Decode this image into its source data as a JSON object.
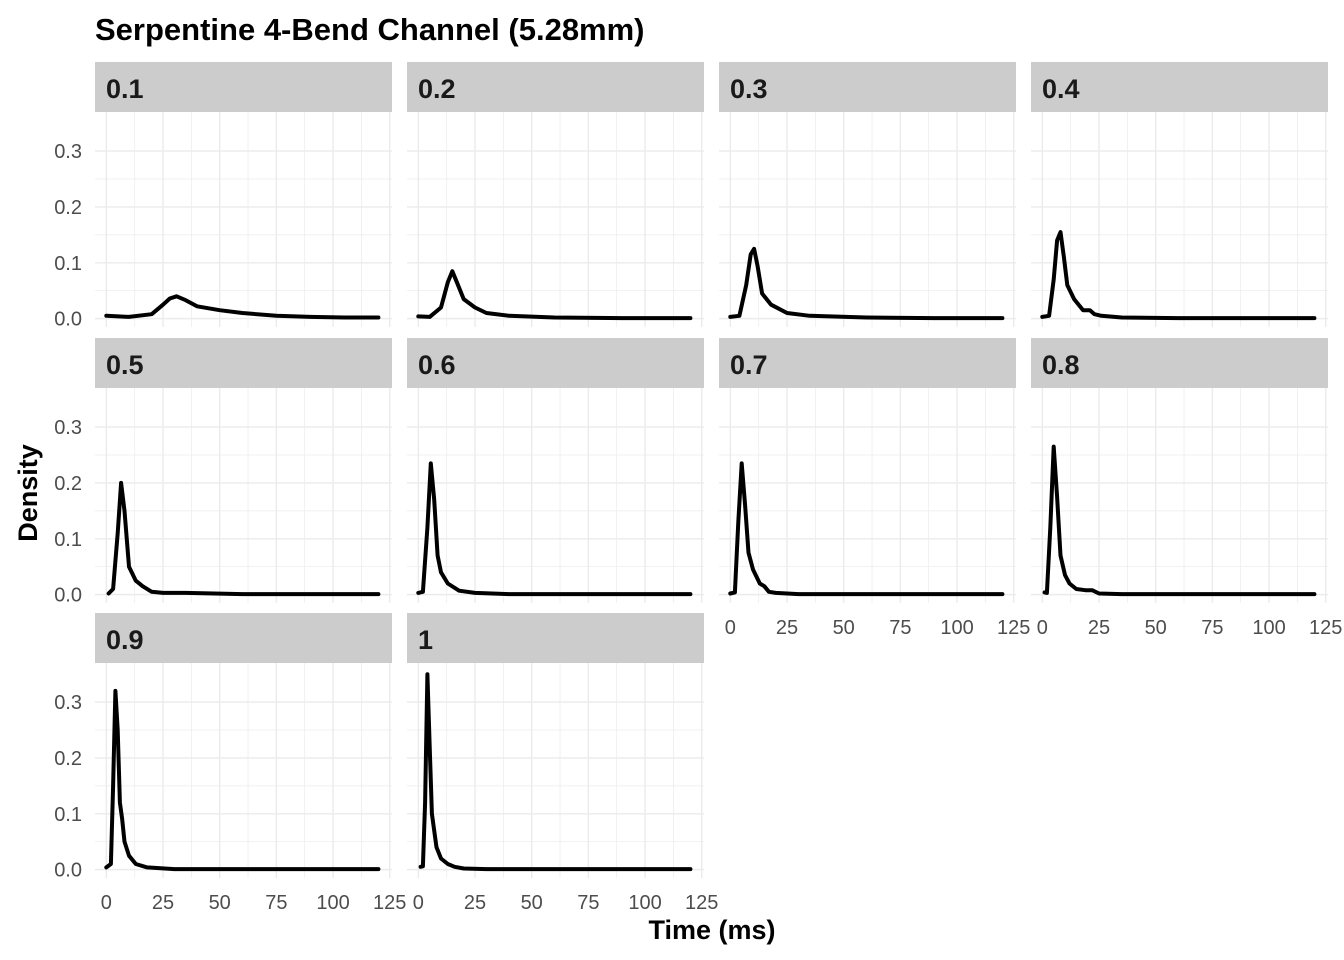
{
  "chart_data": {
    "type": "line",
    "title": "Serpentine 4-Bend Channel (5.28mm)",
    "xlabel": "Time (ms)",
    "ylabel": "Density",
    "xlim": [
      -5,
      126
    ],
    "ylim": [
      -0.015,
      0.37
    ],
    "x_ticks": [
      0,
      25,
      50,
      75,
      100,
      125
    ],
    "y_ticks": [
      0.0,
      0.1,
      0.2,
      0.3
    ],
    "x_tick_labels": [
      "0",
      "25",
      "50",
      "75",
      "100",
      "125"
    ],
    "y_tick_labels": [
      "0.0",
      "0.1",
      "0.2",
      "0.3"
    ],
    "grid": true,
    "facet_layout": {
      "ncol": 4,
      "nrow": 3
    },
    "panels": [
      {
        "label": "0.1",
        "x": [
          0,
          10,
          20,
          25,
          28,
          31,
          35,
          40,
          50,
          60,
          75,
          90,
          105,
          120
        ],
        "y": [
          0.005,
          0.003,
          0.008,
          0.025,
          0.036,
          0.04,
          0.033,
          0.022,
          0.015,
          0.01,
          0.005,
          0.003,
          0.002,
          0.002
        ]
      },
      {
        "label": "0.2",
        "x": [
          0,
          5,
          10,
          13,
          15,
          17,
          20,
          25,
          30,
          40,
          60,
          90,
          120
        ],
        "y": [
          0.004,
          0.003,
          0.02,
          0.065,
          0.085,
          0.065,
          0.035,
          0.02,
          0.01,
          0.005,
          0.002,
          0.001,
          0.001
        ]
      },
      {
        "label": "0.3",
        "x": [
          0,
          4,
          7,
          9,
          10.5,
          12,
          14,
          18,
          25,
          35,
          60,
          90,
          120
        ],
        "y": [
          0.003,
          0.005,
          0.06,
          0.115,
          0.125,
          0.095,
          0.045,
          0.025,
          0.01,
          0.005,
          0.002,
          0.001,
          0.001
        ]
      },
      {
        "label": "0.4",
        "x": [
          0,
          3,
          5,
          6.5,
          8,
          9.5,
          11,
          14,
          18,
          21,
          23,
          26,
          35,
          60,
          120
        ],
        "y": [
          0.003,
          0.005,
          0.07,
          0.14,
          0.155,
          0.11,
          0.06,
          0.035,
          0.015,
          0.015,
          0.008,
          0.005,
          0.002,
          0.001,
          0.001
        ]
      },
      {
        "label": "0.5",
        "x": [
          1,
          3,
          5,
          6.5,
          8,
          10,
          13,
          16,
          20,
          25,
          35,
          60,
          120
        ],
        "y": [
          0.002,
          0.01,
          0.11,
          0.2,
          0.15,
          0.05,
          0.025,
          0.015,
          0.005,
          0.003,
          0.003,
          0.001,
          0.001
        ]
      },
      {
        "label": "0.6",
        "x": [
          0,
          2,
          4,
          5.5,
          7,
          8.5,
          10,
          13,
          18,
          25,
          40,
          60,
          120
        ],
        "y": [
          0.003,
          0.005,
          0.12,
          0.235,
          0.17,
          0.07,
          0.04,
          0.02,
          0.007,
          0.003,
          0.001,
          0.001,
          0.001
        ]
      },
      {
        "label": "0.7",
        "x": [
          0,
          2,
          3.5,
          5,
          6.5,
          8,
          10,
          13,
          15,
          17,
          20,
          30,
          60,
          120
        ],
        "y": [
          0.002,
          0.004,
          0.13,
          0.235,
          0.16,
          0.075,
          0.045,
          0.02,
          0.015,
          0.005,
          0.003,
          0.001,
          0.001,
          0.001
        ]
      },
      {
        "label": "0.8",
        "x": [
          1,
          2,
          3.5,
          5,
          6.5,
          8,
          10,
          12,
          15,
          19,
          22,
          25,
          35,
          120
        ],
        "y": [
          0.004,
          0.003,
          0.12,
          0.265,
          0.175,
          0.07,
          0.035,
          0.02,
          0.01,
          0.008,
          0.008,
          0.002,
          0.001,
          0.001
        ]
      },
      {
        "label": "0.9",
        "x": [
          0,
          2,
          3,
          4,
          5,
          6,
          7,
          8,
          10,
          13,
          18,
          30,
          60,
          120
        ],
        "y": [
          0.004,
          0.01,
          0.15,
          0.32,
          0.25,
          0.12,
          0.09,
          0.05,
          0.025,
          0.01,
          0.004,
          0.001,
          0.001,
          0.001
        ]
      },
      {
        "label": "1",
        "x": [
          1,
          2,
          3,
          4,
          5,
          6,
          8,
          10,
          13,
          16,
          20,
          30,
          60,
          120
        ],
        "y": [
          0.005,
          0.006,
          0.12,
          0.35,
          0.22,
          0.1,
          0.04,
          0.02,
          0.01,
          0.005,
          0.002,
          0.001,
          0.001,
          0.001
        ]
      }
    ]
  }
}
